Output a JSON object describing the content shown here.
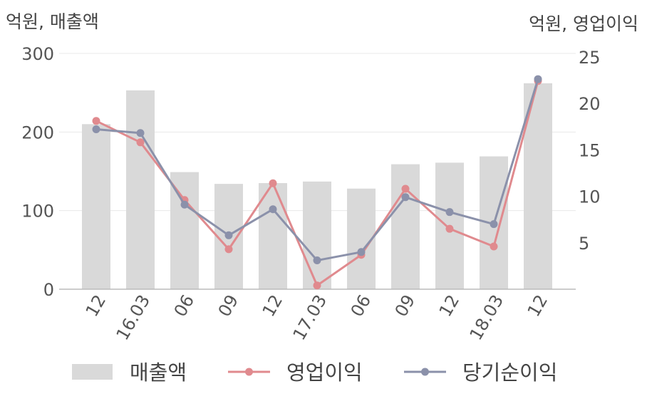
{
  "chart_data": {
    "type": "bar+line",
    "left_axis_label": "억원, 매출액",
    "right_axis_label": "억원, 영업이익",
    "categories": [
      "12",
      "16.03",
      "06",
      "09",
      "12",
      "17.03",
      "06",
      "09",
      "12",
      "18.03",
      "12"
    ],
    "left_ylim": [
      0,
      300
    ],
    "left_ticks": [
      0,
      100,
      200,
      300
    ],
    "right_ylim": [
      0,
      25
    ],
    "right_ticks": [
      5,
      10,
      15,
      20,
      25
    ],
    "grid": true,
    "legend_position": "bottom",
    "series": [
      {
        "name": "매출액",
        "kind": "bar",
        "axis": "left",
        "color": "#d9d9d9",
        "values": [
          210,
          253,
          149,
          134,
          135,
          137,
          128,
          159,
          161,
          169,
          262
        ]
      },
      {
        "name": "영업이익",
        "kind": "line",
        "axis": "right",
        "color": "#e08a8e",
        "values": [
          18.1,
          15.8,
          9.6,
          4.3,
          11.4,
          0.4,
          3.7,
          10.8,
          6.5,
          4.6,
          22.4
        ]
      },
      {
        "name": "당기순이익",
        "kind": "line",
        "axis": "right",
        "color": "#8b91aa",
        "values": [
          17.2,
          16.8,
          9.1,
          5.8,
          8.6,
          3.1,
          4.0,
          9.9,
          8.3,
          7.0,
          22.6
        ]
      }
    ]
  }
}
